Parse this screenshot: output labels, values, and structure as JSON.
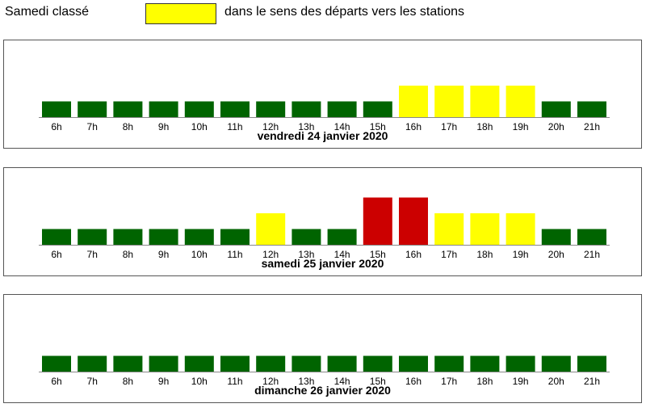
{
  "header": {
    "title": "Samedi classé",
    "legend_label": "dans le sens des départs vers les stations",
    "legend_color": "#ffff00"
  },
  "colors": {
    "green": "#006400",
    "yellow": "#ffff00",
    "red": "#cc0000"
  },
  "chart_data": [
    {
      "type": "bar",
      "title": "vendredi 24 janvier 2020",
      "categories": [
        "6h",
        "7h",
        "8h",
        "9h",
        "10h",
        "11h",
        "12h",
        "13h",
        "14h",
        "15h",
        "16h",
        "17h",
        "18h",
        "19h",
        "20h",
        "21h"
      ],
      "values": [
        1,
        1,
        1,
        1,
        1,
        1,
        1,
        1,
        1,
        1,
        2,
        2,
        2,
        2,
        1,
        1
      ],
      "colors": [
        "green",
        "green",
        "green",
        "green",
        "green",
        "green",
        "green",
        "green",
        "green",
        "green",
        "yellow",
        "yellow",
        "yellow",
        "yellow",
        "green",
        "green"
      ],
      "ylim": [
        0,
        3
      ]
    },
    {
      "type": "bar",
      "title": "samedi 25 janvier 2020",
      "categories": [
        "6h",
        "7h",
        "8h",
        "9h",
        "10h",
        "11h",
        "12h",
        "13h",
        "14h",
        "15h",
        "16h",
        "17h",
        "18h",
        "19h",
        "20h",
        "21h"
      ],
      "values": [
        1,
        1,
        1,
        1,
        1,
        1,
        2,
        1,
        1,
        3,
        3,
        2,
        2,
        2,
        1,
        1
      ],
      "colors": [
        "green",
        "green",
        "green",
        "green",
        "green",
        "green",
        "yellow",
        "green",
        "green",
        "red",
        "red",
        "yellow",
        "yellow",
        "yellow",
        "green",
        "green"
      ],
      "ylim": [
        0,
        3
      ]
    },
    {
      "type": "bar",
      "title": "dimanche 26 janvier 2020",
      "categories": [
        "6h",
        "7h",
        "8h",
        "9h",
        "10h",
        "11h",
        "12h",
        "13h",
        "14h",
        "15h",
        "16h",
        "17h",
        "18h",
        "19h",
        "20h",
        "21h"
      ],
      "values": [
        1,
        1,
        1,
        1,
        1,
        1,
        1,
        1,
        1,
        1,
        1,
        1,
        1,
        1,
        1,
        1
      ],
      "colors": [
        "green",
        "green",
        "green",
        "green",
        "green",
        "green",
        "green",
        "green",
        "green",
        "green",
        "green",
        "green",
        "green",
        "green",
        "green",
        "green"
      ],
      "ylim": [
        0,
        3
      ]
    }
  ]
}
